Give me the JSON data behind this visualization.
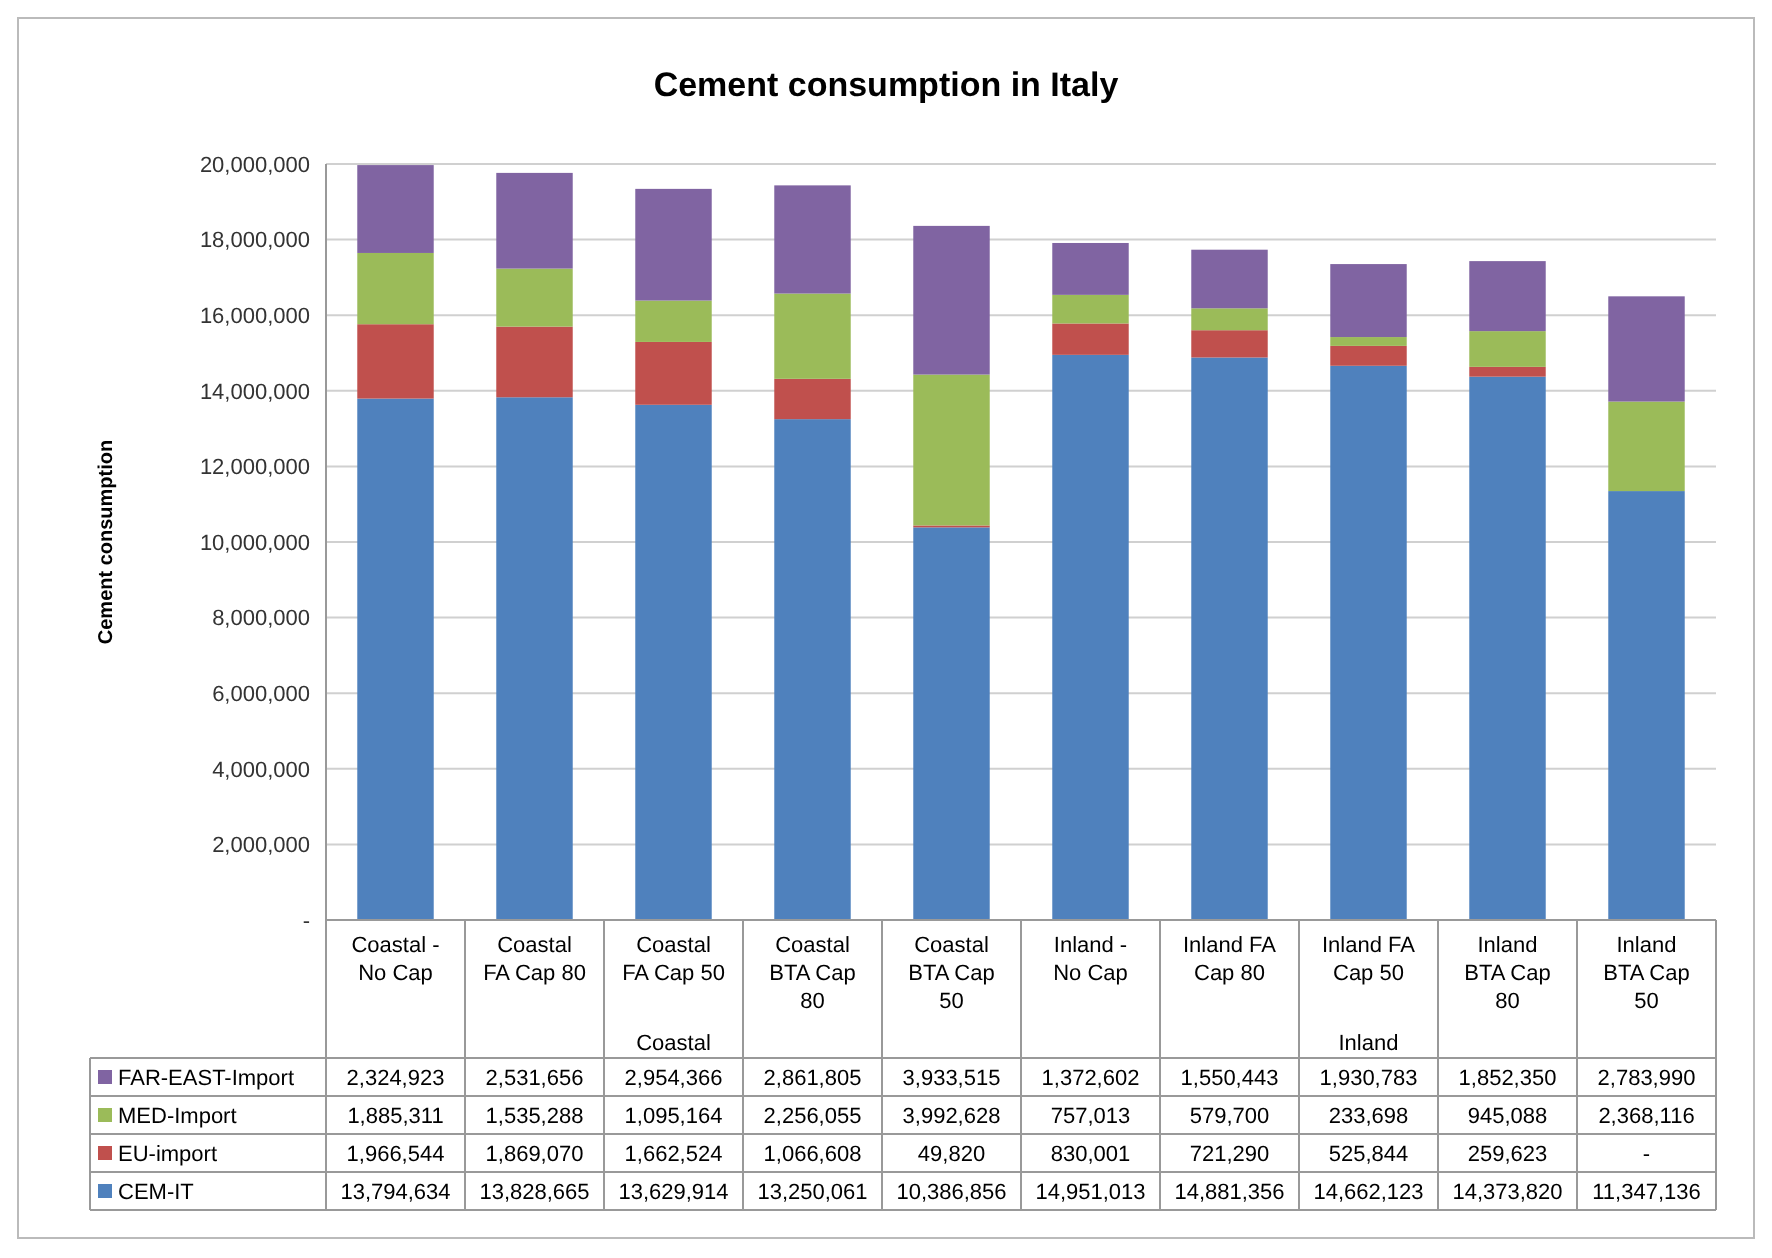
{
  "chart_data": {
    "type": "bar",
    "title": "Cement consumption in Italy",
    "ylabel": "Cement consumption",
    "stacked": true,
    "grid": "y",
    "legend": "bottom",
    "categories": [
      "Coastal - No Cap",
      "Coastal FA Cap 80",
      "Coastal FA Cap 50",
      "Coastal BTA Cap 80",
      "Coastal BTA Cap 50",
      "Inland - No Cap",
      "Inland FA Cap 80",
      "Inland FA Cap 50",
      "Inland BTA Cap 80",
      "Inland BTA Cap 50"
    ],
    "annotations": [
      "Coastal",
      "Inland"
    ],
    "ylim": [
      0,
      20000000
    ],
    "yticks": [
      {
        "value": 0,
        "label": "-"
      },
      {
        "value": 2000000,
        "label": "2,000,000"
      },
      {
        "value": 4000000,
        "label": "4,000,000"
      },
      {
        "value": 6000000,
        "label": "6,000,000"
      },
      {
        "value": 8000000,
        "label": "8,000,000"
      },
      {
        "value": 10000000,
        "label": "10,000,000"
      },
      {
        "value": 12000000,
        "label": "12,000,000"
      },
      {
        "value": 14000000,
        "label": "14,000,000"
      },
      {
        "value": 16000000,
        "label": "16,000,000"
      },
      {
        "value": 18000000,
        "label": "18,000,000"
      },
      {
        "value": 20000000,
        "label": "20,000,000"
      }
    ],
    "series": [
      {
        "name": "CEM-IT",
        "color": "#4f81bd",
        "values": [
          13794634,
          13828665,
          13629914,
          13250061,
          10386856,
          14951013,
          14881356,
          14662123,
          14373820,
          11347136
        ],
        "value_labels": [
          "13,794,634",
          "13,828,665",
          "13,629,914",
          "13,250,061",
          "10,386,856",
          "14,951,013",
          "14,881,356",
          "14,662,123",
          "14,373,820",
          "11,347,136"
        ]
      },
      {
        "name": "EU-import",
        "color": "#c0504d",
        "values": [
          1966544,
          1869070,
          1662524,
          1066608,
          49820,
          830001,
          721290,
          525844,
          259623,
          null
        ],
        "value_labels": [
          "1,966,544",
          "1,869,070",
          "1,662,524",
          "1,066,608",
          "49,820",
          "830,001",
          "721,290",
          "525,844",
          "259,623",
          "-"
        ]
      },
      {
        "name": "MED-Import",
        "color": "#9bbb59",
        "values": [
          1885311,
          1535288,
          1095164,
          2256055,
          3992628,
          757013,
          579700,
          233698,
          945088,
          2368116
        ],
        "value_labels": [
          "1,885,311",
          "1,535,288",
          "1,095,164",
          "2,256,055",
          "3,992,628",
          "757,013",
          "579,700",
          "233,698",
          "945,088",
          "2,368,116"
        ]
      },
      {
        "name": "FAR-EAST-Import",
        "color": "#8064a2",
        "values": [
          2324923,
          2531656,
          2954366,
          2861805,
          3933515,
          1372602,
          1550443,
          1930783,
          1852350,
          2783990
        ],
        "value_labels": [
          "2,324,923",
          "2,531,656",
          "2,954,366",
          "2,861,805",
          "3,933,515",
          "1,372,602",
          "1,550,443",
          "1,930,783",
          "1,852,350",
          "2,783,990"
        ]
      }
    ]
  }
}
